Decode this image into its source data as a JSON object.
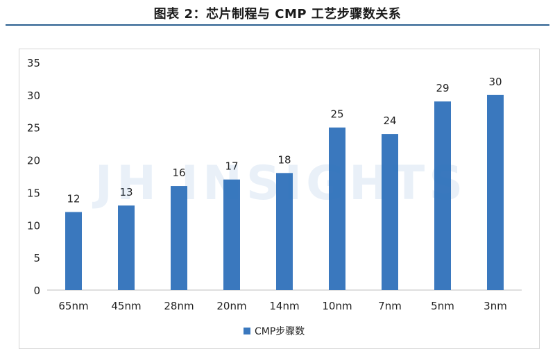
{
  "figure": {
    "title": "图表 2：芯片制程与 CMP 工艺步骤数关系",
    "watermark": "JH INSIGHTS"
  },
  "colors": {
    "bar": "#3a78be",
    "axis": "#bfbfbf",
    "title_rule": "#2a5f8f"
  },
  "chart_data": {
    "type": "bar",
    "categories": [
      "65nm",
      "45nm",
      "28nm",
      "20nm",
      "14nm",
      "10nm",
      "7nm",
      "5nm",
      "3nm"
    ],
    "series": [
      {
        "name": "CMP步骤数",
        "values": [
          12,
          13,
          16,
          17,
          18,
          25,
          24,
          29,
          30
        ]
      }
    ],
    "ylim": [
      0,
      35
    ],
    "yticks": [
      0,
      5,
      10,
      15,
      20,
      25,
      30,
      35
    ],
    "grid": false,
    "legend": "bottom",
    "data_labels": true
  }
}
